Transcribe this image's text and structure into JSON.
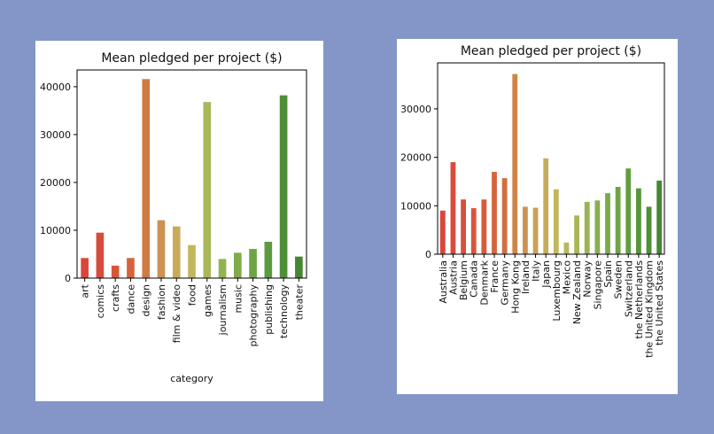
{
  "colors": {
    "background": "#8496c8",
    "panel": "#ffffff",
    "axis": "#000000"
  },
  "chart_data": [
    {
      "type": "bar",
      "title": "Mean pledged per project ($)",
      "xlabel": "category",
      "ylabel": "",
      "ylim": [
        0,
        43500
      ],
      "yticks": [
        0,
        10000,
        20000,
        30000,
        40000
      ],
      "grid": false,
      "categories": [
        "art",
        "comics",
        "crafts",
        "dance",
        "design",
        "fashion",
        "film & video",
        "food",
        "games",
        "journalism",
        "music",
        "photography",
        "publishing",
        "technology",
        "theater"
      ],
      "values": [
        4200,
        9500,
        2600,
        4200,
        41600,
        12100,
        10800,
        6900,
        36800,
        4000,
        5300,
        6100,
        7600,
        38200,
        4500
      ],
      "colors": [
        "#d9463c",
        "#d74d3c",
        "#d6563c",
        "#d4623d",
        "#cf7b44",
        "#cd9152",
        "#c9aa5a",
        "#c4b65c",
        "#a9b759",
        "#93b351",
        "#7fab4a",
        "#6ca445",
        "#5c9a3f",
        "#4f8f38",
        "#458632"
      ]
    },
    {
      "type": "bar",
      "title": "Mean pledged per project ($)",
      "xlabel": "",
      "ylabel": "",
      "ylim": [
        0,
        39500
      ],
      "yticks": [
        0,
        10000,
        20000,
        30000
      ],
      "grid": false,
      "categories": [
        "Australia",
        "Austria",
        "Belgium",
        "Canada",
        "Denmark",
        "France",
        "Germany",
        "Hong Kong",
        "Ireland",
        "Italy",
        "Japan",
        "Luxembourg",
        "Mexico",
        "New Zealand",
        "Norway",
        "Singapore",
        "Spain",
        "Sweden",
        "Switzerland",
        "the Netherlands",
        "the United Kingdom",
        "the United States"
      ],
      "values": [
        9000,
        19000,
        11300,
        9500,
        11300,
        17000,
        15700,
        37200,
        9800,
        9600,
        19800,
        13400,
        2400,
        8000,
        10800,
        11100,
        12600,
        13900,
        17700,
        13600,
        9800,
        15200
      ],
      "colors": [
        "#d9463c",
        "#d84b3c",
        "#d7503c",
        "#d6563c",
        "#d55d3c",
        "#d4653d",
        "#d26f3f",
        "#cf8548",
        "#cd9352",
        "#caa157",
        "#c7ad5a",
        "#c3b65b",
        "#b8b85a",
        "#a8b657",
        "#99b453",
        "#8aaf4e",
        "#7caa4a",
        "#6fa445",
        "#629e41",
        "#57963c",
        "#4e8f38",
        "#468733"
      ]
    }
  ]
}
